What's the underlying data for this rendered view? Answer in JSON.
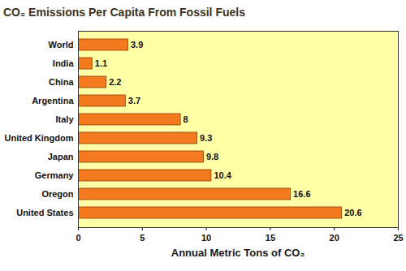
{
  "chart_data": {
    "type": "bar",
    "orientation": "horizontal",
    "title": "CO₂ Emissions Per Capita From Fossil Fuels",
    "x_label": "Annual Metric Tons of CO₂",
    "categories": [
      "World",
      "India",
      "China",
      "Argentina",
      "Italy",
      "United Kingdom",
      "Japan",
      "Germany",
      "Oregon",
      "United States"
    ],
    "values": [
      3.9,
      1.1,
      2.2,
      3.7,
      8,
      9.3,
      9.8,
      10.4,
      16.6,
      20.6
    ],
    "color": "#f47a20",
    "xlim": [
      0,
      25
    ],
    "xticks": [
      0,
      5,
      10,
      15,
      20,
      25
    ],
    "grid": false,
    "data_labels": true
  }
}
